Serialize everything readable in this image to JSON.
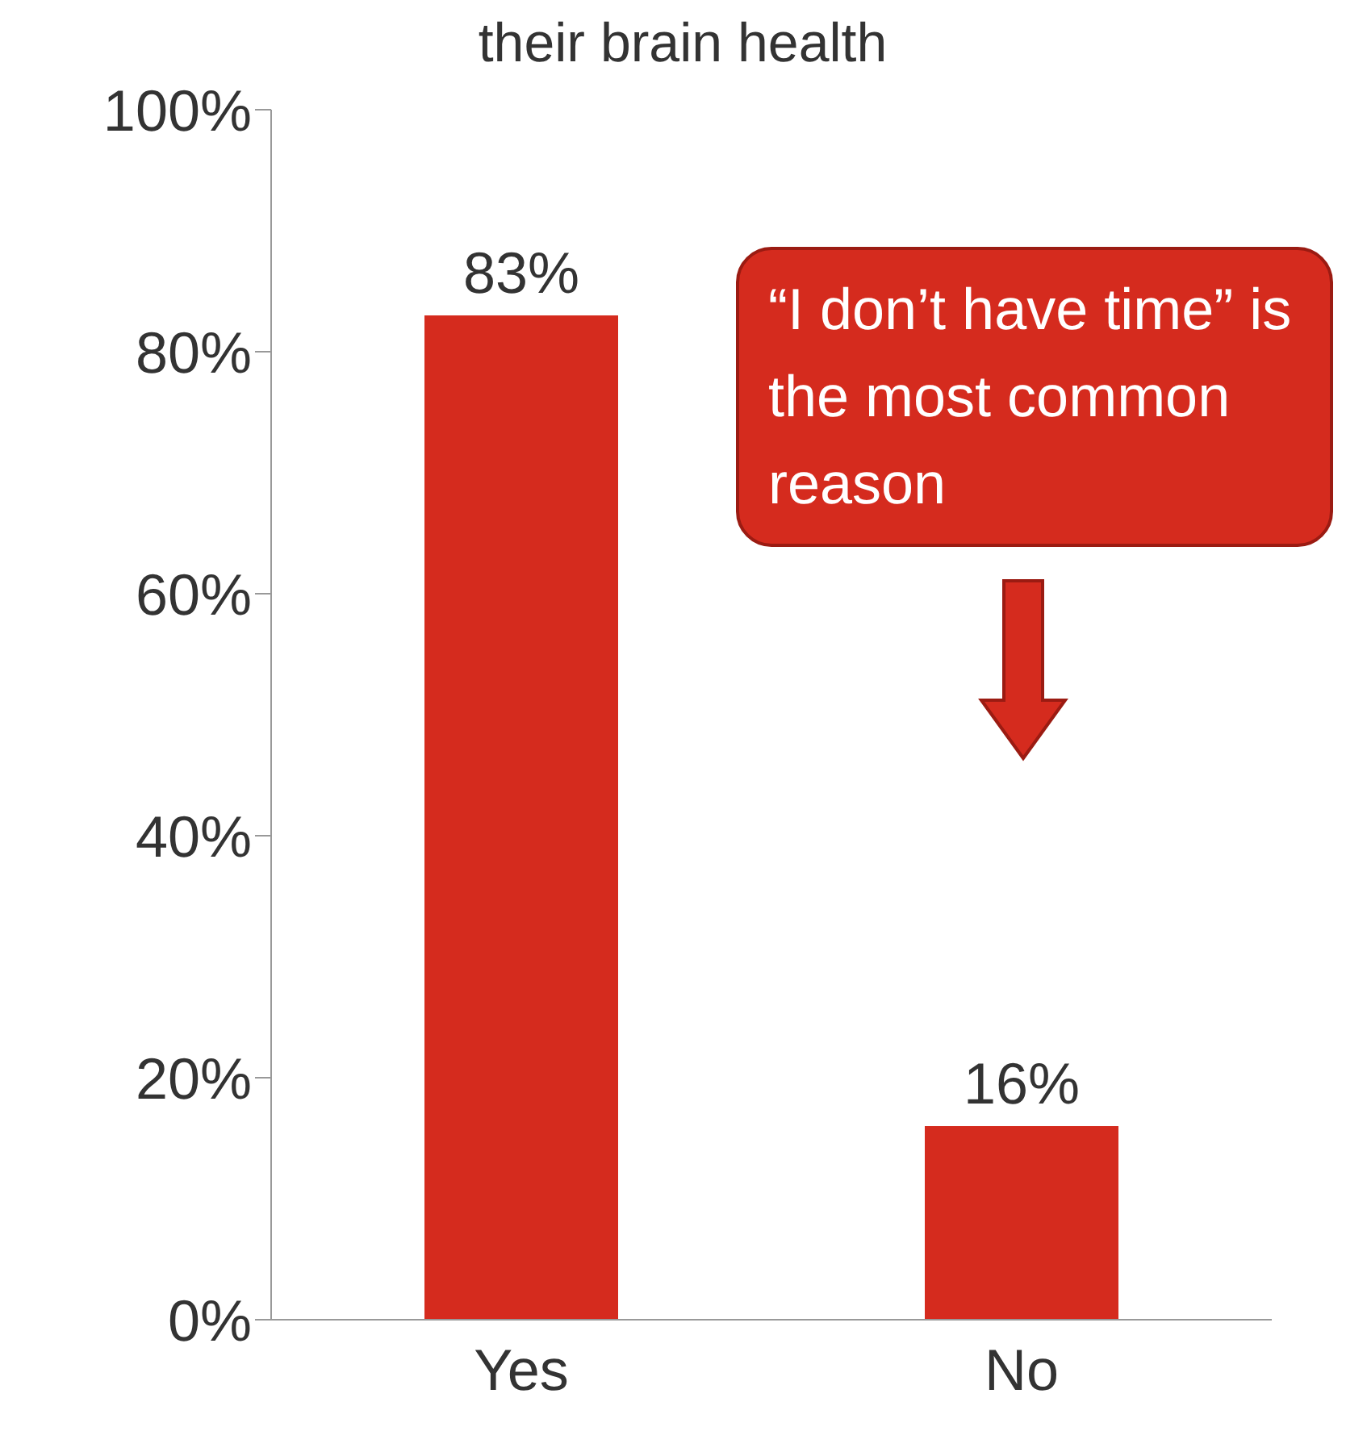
{
  "chart_data": {
    "type": "bar",
    "title": "their brain health",
    "categories": [
      "Yes",
      "No"
    ],
    "values": [
      83,
      16
    ],
    "value_labels": [
      "83%",
      "16%"
    ],
    "color": "#d52b1e",
    "ylim": [
      0,
      100
    ],
    "yticks": [
      {
        "value": 0,
        "label": "0%"
      },
      {
        "value": 20,
        "label": "20%"
      },
      {
        "value": 40,
        "label": "40%"
      },
      {
        "value": 60,
        "label": "60%"
      },
      {
        "value": 80,
        "label": "80%"
      },
      {
        "value": 100,
        "label": "100%"
      }
    ],
    "grid": false,
    "annotations": [
      "“I don’t have time” is the most common reason"
    ]
  }
}
